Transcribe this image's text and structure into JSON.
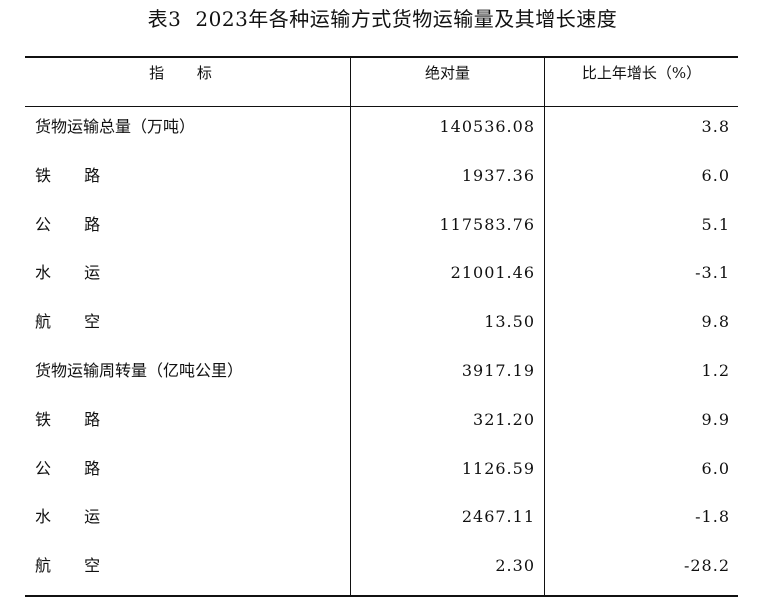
{
  "title": {
    "number": "表3",
    "text": "2023年各种运输方式货物运输量及其增长速度"
  },
  "table": {
    "headers": {
      "indicator": "指 标",
      "absolute": "绝对量",
      "growth": "比上年增长（%）"
    },
    "rows": [
      {
        "label": "货物运输总量（万吨）",
        "absolute": "140536.08",
        "growth": "3.8",
        "spaced": false
      },
      {
        "label": "铁 路",
        "absolute": "1937.36",
        "growth": "6.0",
        "spaced": true
      },
      {
        "label": "公 路",
        "absolute": "117583.76",
        "growth": "5.1",
        "spaced": true
      },
      {
        "label": "水 运",
        "absolute": "21001.46",
        "growth": "-3.1",
        "spaced": true
      },
      {
        "label": "航 空",
        "absolute": "13.50",
        "growth": "9.8",
        "spaced": true
      },
      {
        "label": "货物运输周转量（亿吨公里）",
        "absolute": "3917.19",
        "growth": "1.2",
        "spaced": false
      },
      {
        "label": "铁 路",
        "absolute": "321.20",
        "growth": "9.9",
        "spaced": true
      },
      {
        "label": "公 路",
        "absolute": "1126.59",
        "growth": "6.0",
        "spaced": true
      },
      {
        "label": "水 运",
        "absolute": "2467.11",
        "growth": "-1.8",
        "spaced": true
      },
      {
        "label": "航 空",
        "absolute": "2.30",
        "growth": "-28.2",
        "spaced": true
      }
    ]
  }
}
